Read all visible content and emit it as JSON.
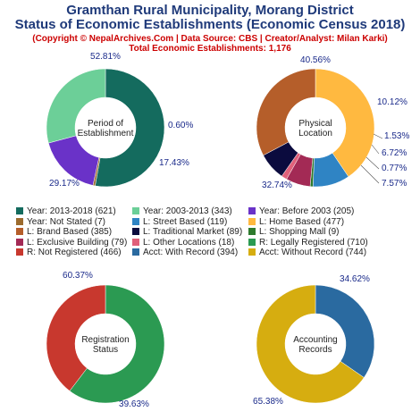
{
  "header": {
    "title1": "Gramthan Rural Municipality, Morang District",
    "title2": "Status of Economic Establishments (Economic Census 2018)",
    "copyright": "(Copyright © NepalArchives.Com | Data Source: CBS | Creator/Analyst: Milan Karki)",
    "total": "Total Economic Establishments: 1,176"
  },
  "chart_data": [
    {
      "type": "pie",
      "title": "Period of Establishment",
      "center_label": [
        "Period of",
        "Establishment"
      ],
      "slices": [
        {
          "label": "Year: 2013-2018",
          "value": 52.81,
          "display": "52.81%",
          "color": "#146b5e"
        },
        {
          "label": "Year: Not Stated",
          "value": 0.6,
          "display": "0.60%",
          "color": "#9c6b2e"
        },
        {
          "label": "Year: Before 2003",
          "value": 17.43,
          "display": "17.43%",
          "color": "#6a32c8"
        },
        {
          "label": "Year: 2003-2013",
          "value": 29.17,
          "display": "29.17%",
          "color": "#6ccf98"
        }
      ]
    },
    {
      "type": "pie",
      "title": "Physical Location",
      "center_label": [
        "Physical",
        "Location"
      ],
      "slices": [
        {
          "label": "L: Home Based",
          "value": 40.56,
          "display": "40.56%",
          "color": "#ffb940"
        },
        {
          "label": "L: Street Based",
          "value": 10.12,
          "display": "10.12%",
          "color": "#2f84c4"
        },
        {
          "label": "L: Shopping Mall",
          "value": 0.77,
          "display": "",
          "color": "#2d7a2d"
        },
        {
          "label": "L: Exclusive Building",
          "value": 6.72,
          "display": "6.72%",
          "color": "#a32a55"
        },
        {
          "label": "L: Other Locations",
          "value": 1.53,
          "display": "1.53%",
          "color": "#e0607a"
        },
        {
          "label": "L: Traditional Market",
          "value": 7.57,
          "display": "7.57%",
          "color": "#0b0b3e"
        },
        {
          "label": "L: Brand Based",
          "value": 32.74,
          "display": "32.74%",
          "color": "#b55e2a"
        }
      ],
      "outside_labels": [
        "10.12%",
        "1.53%",
        "6.72%",
        "0.77%",
        "7.57%"
      ]
    },
    {
      "type": "pie",
      "title": "Registration Status",
      "center_label": [
        "Registration",
        "Status"
      ],
      "slices": [
        {
          "label": "R: Legally Registered",
          "value": 60.37,
          "display": "60.37%",
          "color": "#2b9a52"
        },
        {
          "label": "R: Not Registered",
          "value": 39.63,
          "display": "39.63%",
          "color": "#c8382e"
        }
      ]
    },
    {
      "type": "pie",
      "title": "Accounting Records",
      "center_label": [
        "Accounting",
        "Records"
      ],
      "slices": [
        {
          "label": "Acct: With Record",
          "value": 34.62,
          "display": "34.62%",
          "color": "#2a6aa0"
        },
        {
          "label": "Acct: Without Record",
          "value": 65.38,
          "display": "65.38%",
          "color": "#d6ad10"
        }
      ]
    }
  ],
  "legend": [
    {
      "label": "Year: 2013-2018 (621)",
      "color": "#146b5e"
    },
    {
      "label": "Year: 2003-2013 (343)",
      "color": "#6ccf98"
    },
    {
      "label": "Year: Before 2003 (205)",
      "color": "#6a32c8"
    },
    {
      "label": "Year: Not Stated (7)",
      "color": "#9c6b2e"
    },
    {
      "label": "L: Street Based (119)",
      "color": "#2f84c4"
    },
    {
      "label": "L: Home Based (477)",
      "color": "#ffb940"
    },
    {
      "label": "L: Brand Based (385)",
      "color": "#b55e2a"
    },
    {
      "label": "L: Traditional Market (89)",
      "color": "#0b0b3e"
    },
    {
      "label": "L: Shopping Mall (9)",
      "color": "#2d7a2d"
    },
    {
      "label": "L: Exclusive Building (79)",
      "color": "#a32a55"
    },
    {
      "label": "L: Other Locations (18)",
      "color": "#e0607a"
    },
    {
      "label": "R: Legally Registered (710)",
      "color": "#2b9a52"
    },
    {
      "label": "R: Not Registered (466)",
      "color": "#c8382e"
    },
    {
      "label": "Acct: With Record (394)",
      "color": "#2a6aa0"
    },
    {
      "label": "Acct: Without Record (744)",
      "color": "#d6ad10"
    }
  ]
}
